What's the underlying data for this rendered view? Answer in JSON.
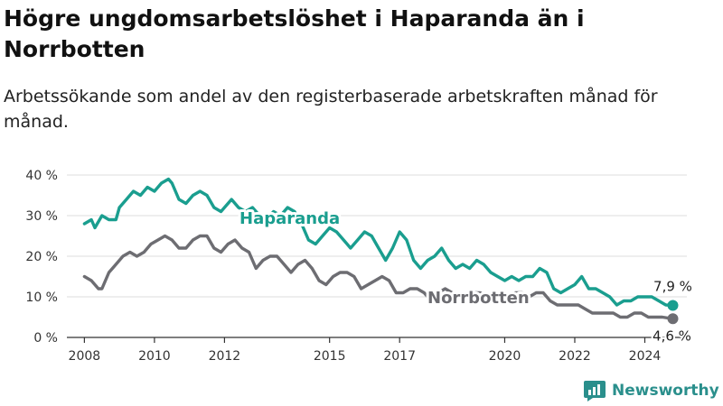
{
  "title": "Högre ungdomsarbetslöshet i Haparanda än i Norrbotten",
  "subtitle": "Arbetssökande som andel av den registerbaserade arbetskraften månad för månad.",
  "brand": "Newsworthy",
  "colors": {
    "haparanda": "#1a9e8f",
    "norrbotten": "#6d6d72",
    "grid": "#dddddd",
    "axis": "#333333"
  },
  "chart_data": {
    "type": "line",
    "title": "Högre ungdomsarbetslöshet i Haparanda än i Norrbotten",
    "xlim": [
      2007.5,
      2025.2
    ],
    "ylim": [
      0,
      40
    ],
    "y_ticks": [
      0,
      10,
      20,
      30,
      40
    ],
    "y_tick_labels": [
      "0 %",
      "10 %",
      "20 %",
      "30 %",
      "40 %"
    ],
    "x_ticks": [
      2008,
      2010,
      2012,
      2015,
      2017,
      2020,
      2022,
      2024
    ],
    "x_tick_labels": [
      "2008",
      "2010",
      "2012",
      "2015",
      "2017",
      "2020",
      "2022",
      "2024"
    ],
    "grid": true,
    "series": [
      {
        "name": "Haparanda",
        "end_label": "7,9 %",
        "points": [
          [
            2008.0,
            28
          ],
          [
            2008.2,
            29
          ],
          [
            2008.3,
            27
          ],
          [
            2008.5,
            30
          ],
          [
            2008.7,
            29
          ],
          [
            2008.9,
            29
          ],
          [
            2009.0,
            32
          ],
          [
            2009.2,
            34
          ],
          [
            2009.4,
            36
          ],
          [
            2009.6,
            35
          ],
          [
            2009.8,
            37
          ],
          [
            2010.0,
            36
          ],
          [
            2010.2,
            38
          ],
          [
            2010.4,
            39
          ],
          [
            2010.5,
            38
          ],
          [
            2010.7,
            34
          ],
          [
            2010.9,
            33
          ],
          [
            2011.1,
            35
          ],
          [
            2011.3,
            36
          ],
          [
            2011.5,
            35
          ],
          [
            2011.7,
            32
          ],
          [
            2011.9,
            31
          ],
          [
            2012.1,
            33
          ],
          [
            2012.2,
            34
          ],
          [
            2012.4,
            32
          ],
          [
            2012.6,
            31
          ],
          [
            2012.8,
            32
          ],
          [
            2013.0,
            30
          ],
          [
            2013.2,
            29
          ],
          [
            2013.4,
            31
          ],
          [
            2013.6,
            30
          ],
          [
            2013.8,
            32
          ],
          [
            2014.0,
            31
          ],
          [
            2014.2,
            28
          ],
          [
            2014.4,
            24
          ],
          [
            2014.6,
            23
          ],
          [
            2014.8,
            25
          ],
          [
            2015.0,
            27
          ],
          [
            2015.2,
            26
          ],
          [
            2015.4,
            24
          ],
          [
            2015.6,
            22
          ],
          [
            2015.8,
            24
          ],
          [
            2016.0,
            26
          ],
          [
            2016.2,
            25
          ],
          [
            2016.4,
            22
          ],
          [
            2016.6,
            19
          ],
          [
            2016.8,
            22
          ],
          [
            2017.0,
            26
          ],
          [
            2017.2,
            24
          ],
          [
            2017.4,
            19
          ],
          [
            2017.6,
            17
          ],
          [
            2017.8,
            19
          ],
          [
            2018.0,
            20
          ],
          [
            2018.2,
            22
          ],
          [
            2018.4,
            19
          ],
          [
            2018.6,
            17
          ],
          [
            2018.8,
            18
          ],
          [
            2019.0,
            17
          ],
          [
            2019.2,
            19
          ],
          [
            2019.4,
            18
          ],
          [
            2019.6,
            16
          ],
          [
            2019.8,
            15
          ],
          [
            2020.0,
            14
          ],
          [
            2020.2,
            15
          ],
          [
            2020.4,
            14
          ],
          [
            2020.6,
            15
          ],
          [
            2020.8,
            15
          ],
          [
            2021.0,
            17
          ],
          [
            2021.2,
            16
          ],
          [
            2021.4,
            12
          ],
          [
            2021.6,
            11
          ],
          [
            2021.8,
            12
          ],
          [
            2022.0,
            13
          ],
          [
            2022.2,
            15
          ],
          [
            2022.4,
            12
          ],
          [
            2022.6,
            12
          ],
          [
            2022.8,
            11
          ],
          [
            2023.0,
            10
          ],
          [
            2023.2,
            8
          ],
          [
            2023.4,
            9
          ],
          [
            2023.6,
            9
          ],
          [
            2023.8,
            10
          ],
          [
            2024.0,
            10
          ],
          [
            2024.2,
            10
          ],
          [
            2024.4,
            9
          ],
          [
            2024.6,
            8
          ],
          [
            2024.8,
            7.9
          ]
        ]
      },
      {
        "name": "Norrbotten",
        "end_label": "4,6 %",
        "points": [
          [
            2008.0,
            15
          ],
          [
            2008.2,
            14
          ],
          [
            2008.4,
            12
          ],
          [
            2008.5,
            12
          ],
          [
            2008.7,
            16
          ],
          [
            2008.9,
            18
          ],
          [
            2009.1,
            20
          ],
          [
            2009.3,
            21
          ],
          [
            2009.5,
            20
          ],
          [
            2009.7,
            21
          ],
          [
            2009.9,
            23
          ],
          [
            2010.1,
            24
          ],
          [
            2010.3,
            25
          ],
          [
            2010.5,
            24
          ],
          [
            2010.7,
            22
          ],
          [
            2010.9,
            22
          ],
          [
            2011.1,
            24
          ],
          [
            2011.3,
            25
          ],
          [
            2011.5,
            25
          ],
          [
            2011.7,
            22
          ],
          [
            2011.9,
            21
          ],
          [
            2012.1,
            23
          ],
          [
            2012.3,
            24
          ],
          [
            2012.5,
            22
          ],
          [
            2012.7,
            21
          ],
          [
            2012.9,
            17
          ],
          [
            2013.1,
            19
          ],
          [
            2013.3,
            20
          ],
          [
            2013.5,
            20
          ],
          [
            2013.7,
            18
          ],
          [
            2013.9,
            16
          ],
          [
            2014.1,
            18
          ],
          [
            2014.3,
            19
          ],
          [
            2014.5,
            17
          ],
          [
            2014.7,
            14
          ],
          [
            2014.9,
            13
          ],
          [
            2015.1,
            15
          ],
          [
            2015.3,
            16
          ],
          [
            2015.5,
            16
          ],
          [
            2015.7,
            15
          ],
          [
            2015.9,
            12
          ],
          [
            2016.1,
            13
          ],
          [
            2016.3,
            14
          ],
          [
            2016.5,
            15
          ],
          [
            2016.7,
            14
          ],
          [
            2016.9,
            11
          ],
          [
            2017.1,
            11
          ],
          [
            2017.3,
            12
          ],
          [
            2017.5,
            12
          ],
          [
            2017.7,
            11
          ],
          [
            2017.9,
            9
          ],
          [
            2018.1,
            11
          ],
          [
            2018.3,
            12
          ],
          [
            2018.5,
            11
          ],
          [
            2018.7,
            10
          ],
          [
            2018.9,
            10
          ],
          [
            2019.1,
            11
          ],
          [
            2019.3,
            11
          ],
          [
            2019.5,
            10
          ],
          [
            2019.7,
            9
          ],
          [
            2019.9,
            9
          ],
          [
            2020.1,
            10
          ],
          [
            2020.3,
            11
          ],
          [
            2020.5,
            11
          ],
          [
            2020.7,
            10
          ],
          [
            2020.9,
            11
          ],
          [
            2021.1,
            11
          ],
          [
            2021.3,
            9
          ],
          [
            2021.5,
            8
          ],
          [
            2021.7,
            8
          ],
          [
            2021.9,
            8
          ],
          [
            2022.1,
            8
          ],
          [
            2022.3,
            7
          ],
          [
            2022.5,
            6
          ],
          [
            2022.7,
            6
          ],
          [
            2022.9,
            6
          ],
          [
            2023.1,
            6
          ],
          [
            2023.3,
            5
          ],
          [
            2023.5,
            5
          ],
          [
            2023.7,
            6
          ],
          [
            2023.9,
            6
          ],
          [
            2024.1,
            5
          ],
          [
            2024.3,
            5
          ],
          [
            2024.5,
            5
          ],
          [
            2024.8,
            4.6
          ]
        ]
      }
    ]
  }
}
